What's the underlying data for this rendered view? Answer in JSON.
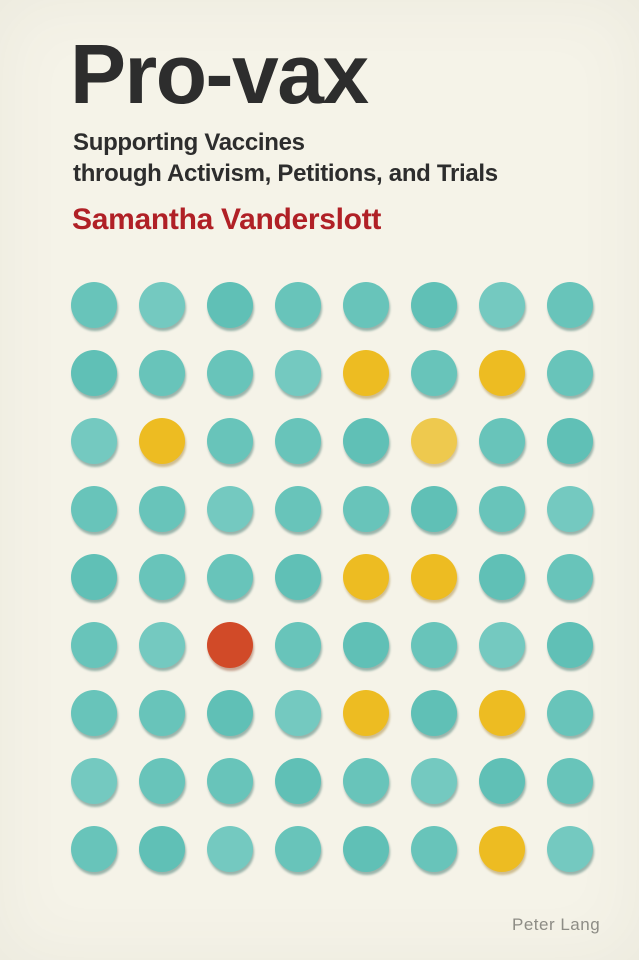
{
  "cover": {
    "title": "Pro-vax",
    "subtitle_line1": "Supporting Vaccines",
    "subtitle_line2": "through Activism, Petitions, and Trials",
    "author": "Samantha Vanderslott",
    "publisher": "Peter Lang",
    "colors": {
      "background": "#f5f3e8",
      "title_text": "#2d2d2d",
      "subtitle_text": "#2d2d2d",
      "author_text": "#b02026",
      "publisher_text": "#8d8c85",
      "dot_teal": "#68c4ba",
      "dot_yellow": "#edbc22",
      "dot_yellow_light": "#eec94e",
      "dot_red": "#d14a28"
    },
    "dot_grid": {
      "rows": 9,
      "columns": 8,
      "pattern": [
        [
          "teal",
          "teal",
          "teal",
          "teal",
          "teal",
          "teal",
          "teal",
          "teal"
        ],
        [
          "teal",
          "teal",
          "teal",
          "teal",
          "yellow",
          "teal",
          "yellow",
          "teal"
        ],
        [
          "teal",
          "yellow",
          "teal",
          "teal",
          "teal",
          "yellow_light",
          "teal",
          "teal"
        ],
        [
          "teal",
          "teal",
          "teal",
          "teal",
          "teal",
          "teal",
          "teal",
          "teal"
        ],
        [
          "teal",
          "teal",
          "teal",
          "teal",
          "yellow",
          "yellow",
          "teal",
          "teal"
        ],
        [
          "teal",
          "teal",
          "red",
          "teal",
          "teal",
          "teal",
          "teal",
          "teal"
        ],
        [
          "teal",
          "teal",
          "teal",
          "teal",
          "yellow",
          "teal",
          "yellow",
          "teal"
        ],
        [
          "teal",
          "teal",
          "teal",
          "teal",
          "teal",
          "teal",
          "teal",
          "teal"
        ],
        [
          "teal",
          "teal",
          "teal",
          "teal",
          "teal",
          "teal",
          "yellow",
          "teal"
        ]
      ]
    }
  }
}
